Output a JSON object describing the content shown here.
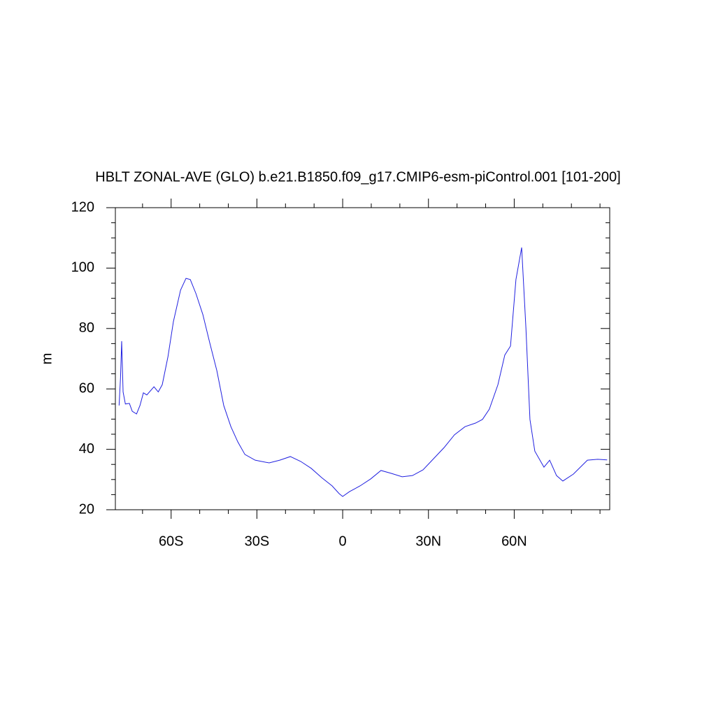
{
  "chart_data": {
    "type": "line",
    "title": "HBLT ZONAL-AVE (GLO) b.e21.B1850.f09_g17.CMIP6-esm-piControl.001 [101-200]",
    "y_label": "m",
    "x": [
      -78.2,
      -77.7,
      -77.3,
      -76.8,
      -76.0,
      -74.6,
      -73.6,
      -72.1,
      -70.9,
      -69.7,
      -68.5,
      -66.0,
      -64.5,
      -63.1,
      -61.1,
      -59.2,
      -56.7,
      -54.8,
      -53.3,
      -51.3,
      -48.9,
      -46.5,
      -44.0,
      -41.6,
      -39.1,
      -36.7,
      -34.2,
      -30.6,
      -25.7,
      -22.0,
      -18.3,
      -14.7,
      -11.0,
      -7.3,
      -3.7,
      -1.2,
      0.0,
      2.4,
      6.1,
      9.8,
      13.4,
      17.1,
      20.8,
      24.4,
      28.1,
      31.8,
      35.5,
      39.1,
      42.8,
      46.5,
      48.9,
      51.3,
      54.3,
      56.7,
      58.7,
      60.6,
      62.6,
      64.1,
      65.5,
      67.2,
      70.4,
      72.4,
      74.8,
      77.0,
      80.7,
      85.6,
      89.2,
      92.5
    ],
    "series": [
      {
        "color": "#2020e0",
        "values": [
          54.5,
          63.7,
          75.8,
          59.0,
          55.0,
          55.2,
          52.6,
          51.7,
          54.5,
          58.7,
          58.0,
          60.7,
          59.0,
          61.4,
          70.7,
          82.3,
          92.7,
          96.6,
          96.2,
          91.5,
          84.6,
          75.3,
          66.0,
          54.5,
          47.5,
          42.5,
          38.3,
          36.4,
          35.5,
          36.4,
          37.6,
          36.0,
          33.7,
          30.6,
          27.9,
          25.3,
          24.4,
          26.0,
          27.9,
          30.2,
          33.0,
          32.0,
          30.9,
          31.3,
          33.2,
          36.9,
          40.6,
          44.8,
          47.5,
          48.7,
          49.9,
          53.3,
          61.4,
          71.2,
          74.2,
          96.2,
          106.8,
          80.0,
          49.9,
          39.4,
          34.1,
          36.4,
          31.3,
          29.5,
          31.8,
          36.4,
          36.7,
          36.5
        ]
      }
    ],
    "xlim": [
      -79.5,
      93.4
    ],
    "ylim": [
      20,
      120
    ],
    "xticks": [
      {
        "value": -60,
        "label": "60S"
      },
      {
        "value": -30,
        "label": "30S"
      },
      0,
      {
        "value": 30,
        "label": "30N"
      },
      {
        "value": 60,
        "label": "60N"
      }
    ],
    "yticks": [
      20,
      40,
      60,
      80,
      100,
      120
    ],
    "xticks_minor": [
      -70,
      -50,
      -40,
      -20,
      -10,
      10,
      20,
      40,
      50,
      70,
      80,
      90
    ],
    "yticks_minor": [
      25,
      30,
      35,
      45,
      50,
      55,
      65,
      70,
      75,
      85,
      90,
      95,
      105,
      110,
      115
    ]
  }
}
